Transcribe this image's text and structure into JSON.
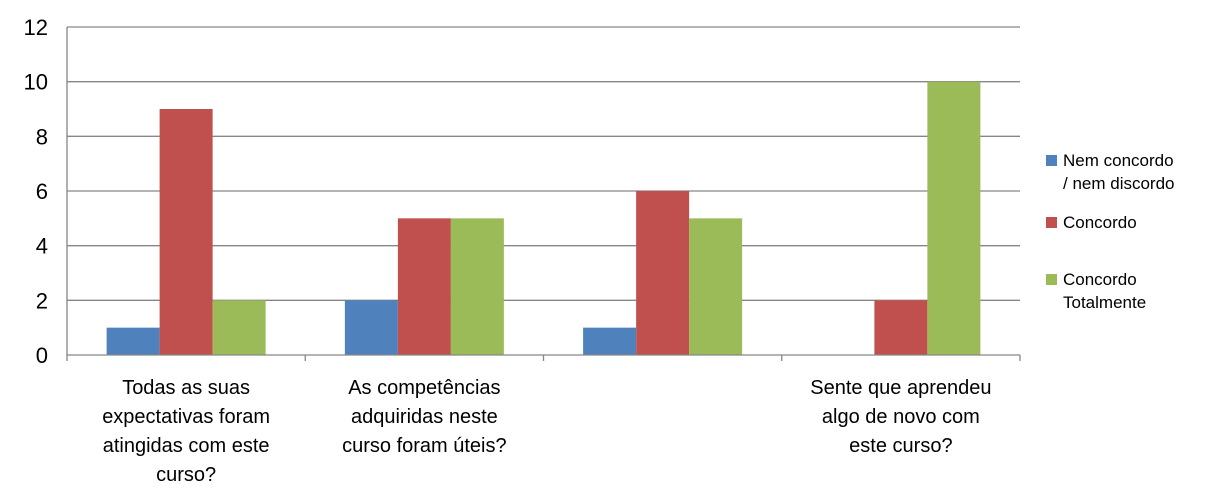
{
  "chart_data": {
    "type": "bar",
    "categories": [
      [
        "Todas as suas",
        "expectativas foram",
        "atingidas com este",
        "curso?"
      ],
      [
        "As competências",
        "adquiridas neste",
        "curso foram úteis?"
      ],
      [],
      [
        "Sente que aprendeu",
        "algo de novo com",
        "este curso?"
      ]
    ],
    "series": [
      {
        "name": [
          "Nem concordo",
          "/ nem discordo"
        ],
        "color": "#4f81bd",
        "values": [
          1,
          2,
          1,
          0
        ]
      },
      {
        "name": [
          "Concordo"
        ],
        "color": "#c0504d",
        "values": [
          9,
          5,
          6,
          2
        ]
      },
      {
        "name": [
          "Concordo",
          "Totalmente"
        ],
        "color": "#9bbb59",
        "values": [
          2,
          5,
          5,
          10
        ]
      }
    ],
    "ylim": [
      0,
      12
    ],
    "yticks": [
      0,
      2,
      4,
      6,
      8,
      10,
      12
    ],
    "grid": true,
    "legend_position": "right",
    "title": "",
    "xlabel": "",
    "ylabel": ""
  }
}
